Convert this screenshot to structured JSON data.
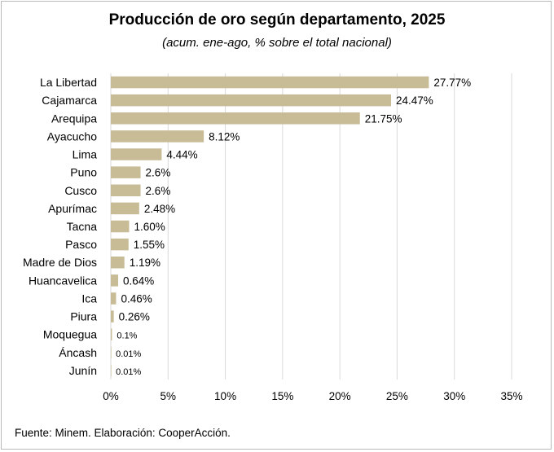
{
  "chart_data": {
    "type": "bar",
    "orientation": "horizontal",
    "title": "Producción de oro según departamento, 2025",
    "subtitle": "(acum. ene-ago, % sobre el total nacional)",
    "xlim": [
      0,
      35
    ],
    "x_ticks": [
      "0%",
      "5%",
      "10%",
      "15%",
      "20%",
      "25%",
      "30%",
      "35%"
    ],
    "grid": "vertical",
    "bar_color": "#c8bc97",
    "categories": [
      "La Libertad",
      "Cajamarca",
      "Arequipa",
      "Ayacucho",
      "Lima",
      "Puno",
      "Cusco",
      "Apurímac",
      "Tacna",
      "Pasco",
      "Madre de Dios",
      "Huancavelica",
      "Ica",
      "Piura",
      "Moquegua",
      "Áncash",
      "Junín"
    ],
    "values": [
      27.77,
      24.47,
      21.75,
      8.12,
      4.44,
      2.6,
      2.6,
      2.48,
      1.6,
      1.55,
      1.19,
      0.64,
      0.46,
      0.26,
      0.1,
      0.01,
      0.01
    ],
    "data_labels": [
      "27.77%",
      "24.47%",
      "21.75%",
      "8.12%",
      "4.44%",
      "2.6%",
      "2.6%",
      "2.48%",
      "1.60%",
      "1.55%",
      "1.19%",
      "0.64%",
      "0.46%",
      "0.26%",
      "0.1%",
      "0.01%",
      "0.01%"
    ]
  },
  "footer": {
    "source": "Fuente: Minem. Elaboración: CooperAcción."
  }
}
